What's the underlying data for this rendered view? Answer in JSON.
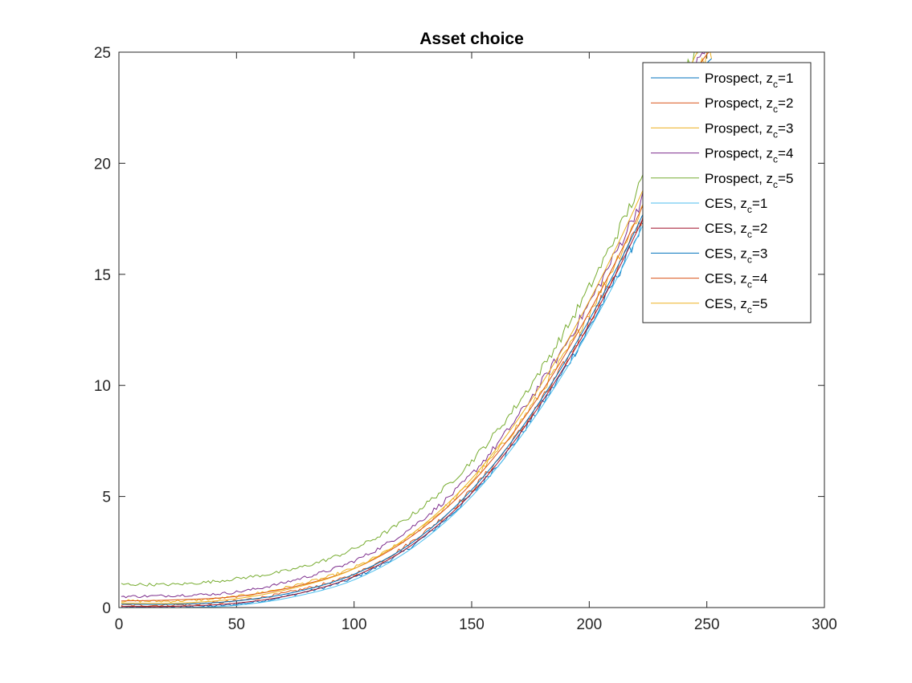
{
  "chart_data": {
    "type": "line",
    "title": "Asset choice",
    "xlabel": "",
    "ylabel": "",
    "xlim": [
      0,
      300
    ],
    "ylim": [
      0,
      25
    ],
    "xticks": [
      0,
      50,
      100,
      150,
      200,
      250,
      300
    ],
    "yticks": [
      0,
      5,
      10,
      15,
      20,
      25
    ],
    "grid": false,
    "legend_position": "top-right",
    "x_points": [
      1,
      25,
      50,
      75,
      100,
      125,
      150,
      175,
      200,
      225,
      250
    ],
    "series": [
      {
        "name": "Prospect, z_c=1",
        "label_main": "Prospect, z",
        "label_sub": "c",
        "label_tail": "=1",
        "color": "#0072BD",
        "noisy": true,
        "values": [
          0.0,
          0.02,
          0.15,
          0.6,
          1.35,
          2.8,
          5.1,
          8.4,
          12.6,
          17.8,
          24.0
        ]
      },
      {
        "name": "Prospect, z_c=2",
        "label_main": "Prospect, z",
        "label_sub": "c",
        "label_tail": "=2",
        "color": "#D95319",
        "noisy": true,
        "values": [
          0.1,
          0.12,
          0.3,
          0.75,
          1.5,
          3.0,
          5.3,
          8.6,
          12.9,
          18.1,
          24.3
        ]
      },
      {
        "name": "Prospect, z_c=3",
        "label_main": "Prospect, z",
        "label_sub": "c",
        "label_tail": "=3",
        "color": "#EDB120",
        "noisy": true,
        "values": [
          0.3,
          0.3,
          0.5,
          1.0,
          1.8,
          3.3,
          5.7,
          9.0,
          13.3,
          18.6,
          24.8
        ]
      },
      {
        "name": "Prospect, z_c=4",
        "label_main": "Prospect, z",
        "label_sub": "c",
        "label_tail": "=4",
        "color": "#7E2F8E",
        "noisy": true,
        "values": [
          0.5,
          0.55,
          0.7,
          1.25,
          2.1,
          3.65,
          6.0,
          9.4,
          13.7,
          19.0,
          25.2
        ]
      },
      {
        "name": "Prospect, z_c=5",
        "label_main": "Prospect, z",
        "label_sub": "c",
        "label_tail": "=5",
        "color": "#77AC30",
        "noisy": true,
        "values": [
          1.05,
          1.05,
          1.3,
          1.75,
          2.65,
          4.2,
          6.6,
          10.0,
          14.4,
          19.8,
          26.0
        ]
      },
      {
        "name": "CES, z_c=1",
        "label_main": "CES, z",
        "label_sub": "c",
        "label_tail": "=1",
        "color": "#4DBEEE",
        "noisy": false,
        "values": [
          0.0,
          0.0,
          0.1,
          0.5,
          1.25,
          2.7,
          5.0,
          8.3,
          12.5,
          17.7,
          23.9
        ]
      },
      {
        "name": "CES, z_c=2",
        "label_main": "CES, z",
        "label_sub": "c",
        "label_tail": "=2",
        "color": "#A2142F",
        "noisy": false,
        "values": [
          0.05,
          0.06,
          0.2,
          0.6,
          1.4,
          2.85,
          5.15,
          8.5,
          12.75,
          18.0,
          24.2
        ]
      },
      {
        "name": "CES, z_c=3",
        "label_main": "CES, z",
        "label_sub": "c",
        "label_tail": "=3",
        "color": "#0072BD",
        "noisy": false,
        "values": [
          0.15,
          0.15,
          0.3,
          0.7,
          1.5,
          2.95,
          5.3,
          8.65,
          12.95,
          18.2,
          24.5
        ]
      },
      {
        "name": "CES, z_c=4",
        "label_main": "CES, z",
        "label_sub": "c",
        "label_tail": "=4",
        "color": "#D95319",
        "noisy": false,
        "values": [
          0.3,
          0.35,
          0.5,
          0.95,
          1.75,
          3.25,
          5.6,
          8.95,
          13.3,
          18.6,
          24.9
        ]
      },
      {
        "name": "CES, z_c=5",
        "label_main": "CES, z",
        "label_sub": "c",
        "label_tail": "=5",
        "color": "#EDB120",
        "noisy": false,
        "values": [
          0.2,
          0.2,
          0.4,
          0.9,
          1.75,
          3.35,
          5.8,
          9.3,
          13.8,
          19.3,
          25.7
        ]
      }
    ]
  }
}
